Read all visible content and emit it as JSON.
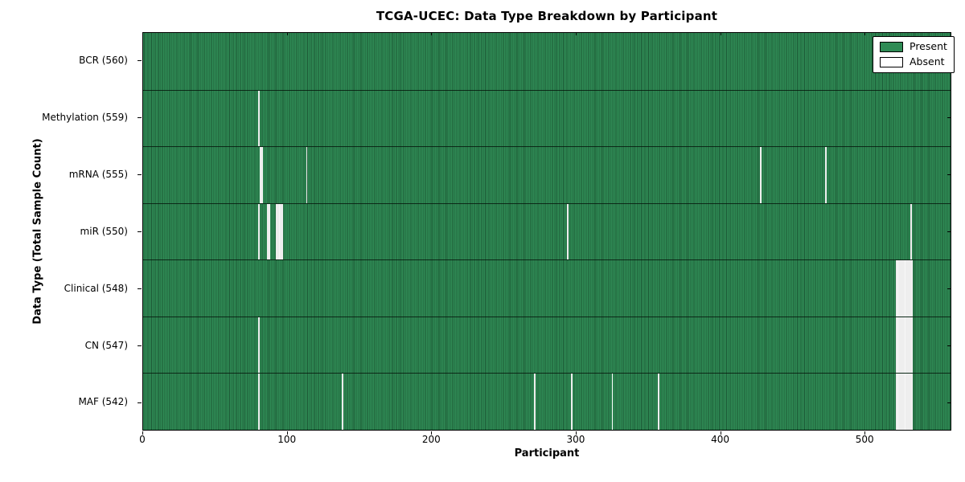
{
  "chart_data": {
    "type": "heatmap",
    "title": "TCGA-UCEC: Data Type Breakdown by Participant",
    "xlabel": "Participant",
    "ylabel": "Data Type (Total Sample Count)",
    "n_participants": 560,
    "x_ticks": [
      0,
      100,
      200,
      300,
      400,
      500
    ],
    "colors": {
      "present": "#2f8b55",
      "present_edge": "#1c5835",
      "absent": "#ffffff",
      "absent_edge": "#c2c2c2",
      "axis": "#000000"
    },
    "legend": {
      "position": "top-right",
      "items": [
        {
          "label": "Present",
          "color": "#2f8b55"
        },
        {
          "label": "Absent",
          "color": "#ffffff"
        }
      ]
    },
    "rows": [
      {
        "label": "BCR (560)",
        "total": 560,
        "absent_participants": []
      },
      {
        "label": "Methylation (559)",
        "total": 559,
        "absent_participants": [
          80
        ]
      },
      {
        "label": "mRNA (555)",
        "total": 555,
        "absent_participants": [
          81,
          82,
          113,
          428,
          473
        ]
      },
      {
        "label": "miR (550)",
        "total": 550,
        "absent_participants": [
          80,
          86,
          87,
          92,
          93,
          94,
          95,
          96,
          294,
          532
        ]
      },
      {
        "label": "Clinical (548)",
        "total": 548,
        "absent_participants": [
          522,
          523,
          524,
          525,
          526,
          527,
          528,
          529,
          530,
          531,
          532,
          533
        ]
      },
      {
        "label": "CN (547)",
        "total": 547,
        "absent_participants": [
          80,
          522,
          523,
          524,
          525,
          526,
          527,
          528,
          529,
          530,
          531,
          532,
          533
        ]
      },
      {
        "label": "MAF (542)",
        "total": 542,
        "absent_participants": [
          80,
          138,
          271,
          297,
          325,
          357,
          522,
          523,
          524,
          525,
          526,
          527,
          528,
          529,
          530,
          531,
          532,
          533
        ]
      }
    ]
  }
}
